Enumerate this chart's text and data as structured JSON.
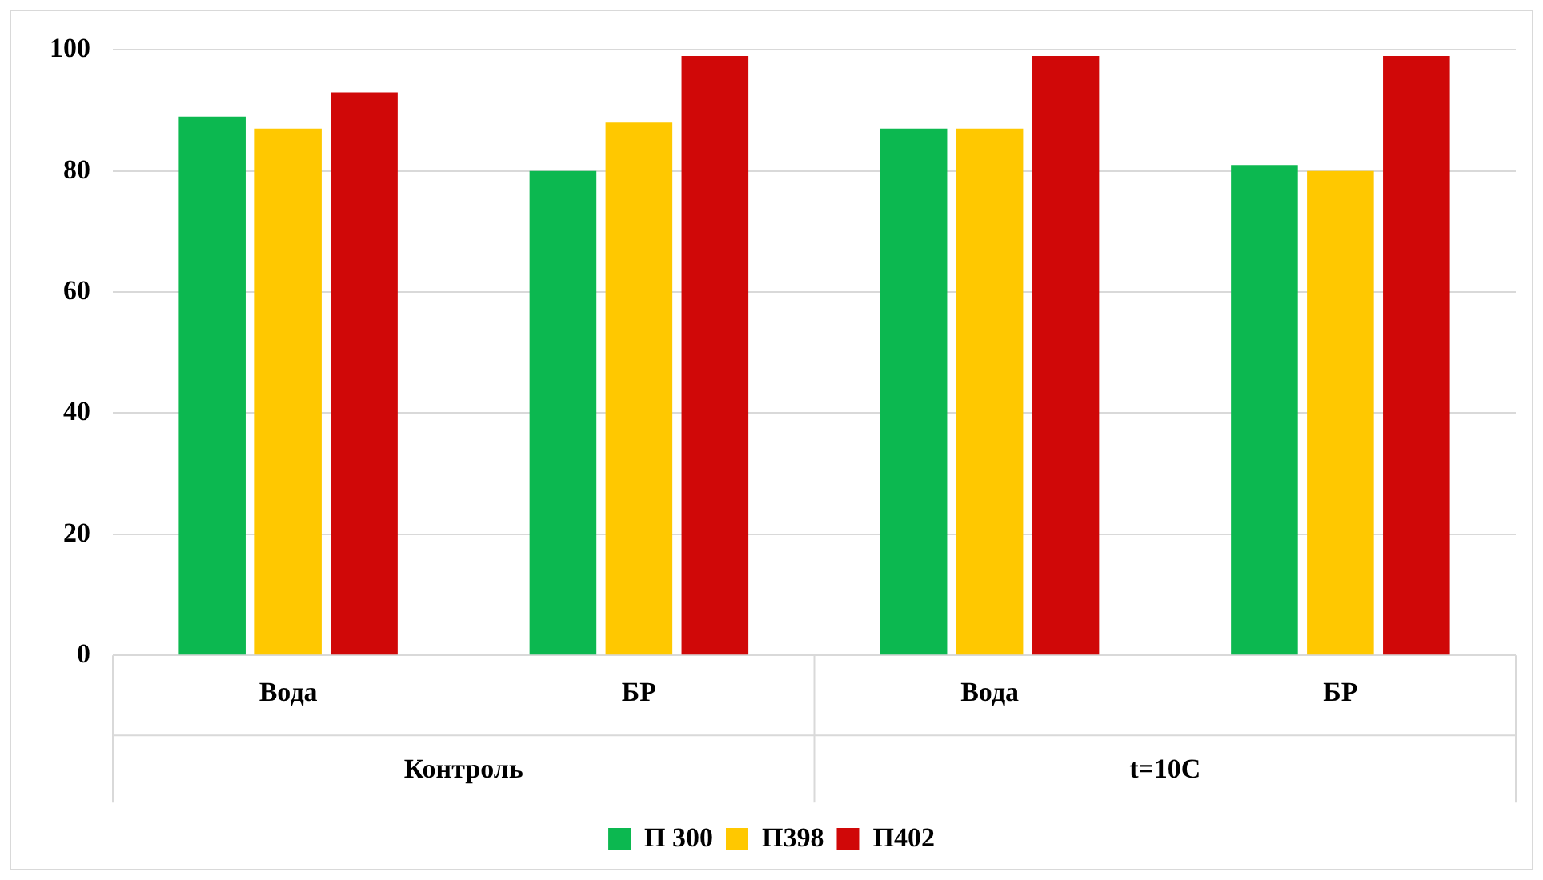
{
  "chart_data": {
    "type": "bar",
    "categories": [
      "Вода",
      "БР",
      "Вода",
      "БР"
    ],
    "series": [
      {
        "name": "П 300",
        "color": "#0cb850",
        "values": [
          89,
          80,
          87,
          81
        ]
      },
      {
        "name": "П398",
        "color": "#ffc800",
        "values": [
          87,
          88,
          87,
          80
        ]
      },
      {
        "name": "П402",
        "color": "#d00808",
        "values": [
          93,
          99,
          99,
          99
        ]
      }
    ],
    "ylim": [
      0,
      100
    ],
    "yticks": [
      0,
      20,
      40,
      60,
      80,
      100
    ],
    "grid": "y",
    "legend": "bottom",
    "annotations": [
      "Контроль",
      "t=10C"
    ]
  }
}
